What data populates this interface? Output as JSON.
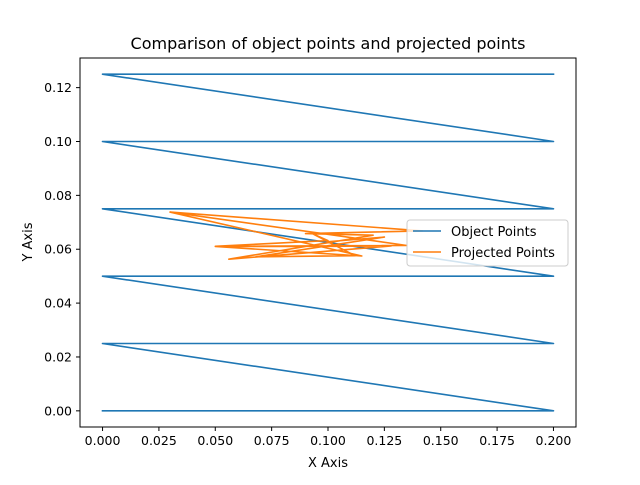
{
  "chart_data": {
    "type": "line",
    "title": "Comparison of object points and projected points",
    "xlabel": "X Axis",
    "ylabel": "Y Axis",
    "xlim": [
      -0.01,
      0.21
    ],
    "ylim": [
      -0.006,
      0.131
    ],
    "xticks": [
      0.0,
      0.025,
      0.05,
      0.075,
      0.1,
      0.125,
      0.15,
      0.175,
      0.2
    ],
    "xtick_labels": [
      "0.000",
      "0.025",
      "0.050",
      "0.075",
      "0.100",
      "0.125",
      "0.150",
      "0.175",
      "0.200"
    ],
    "yticks": [
      0.0,
      0.02,
      0.04,
      0.06,
      0.08,
      0.1,
      0.12
    ],
    "ytick_labels": [
      "0.00",
      "0.02",
      "0.04",
      "0.06",
      "0.08",
      "0.10",
      "0.12"
    ],
    "grid": false,
    "legend": "center-right",
    "series": [
      {
        "name": "Object Points",
        "color": "#1f77b4",
        "x": [
          0.0,
          0.2,
          0.0,
          0.2,
          0.0,
          0.2,
          0.0,
          0.2,
          0.0,
          0.2,
          0.0,
          0.2
        ],
        "y": [
          0.0,
          0.0,
          0.025,
          0.025,
          0.05,
          0.05,
          0.075,
          0.075,
          0.1,
          0.1,
          0.125,
          0.125
        ]
      },
      {
        "name": "Projected Points",
        "color": "#ff7f0e",
        "x": [
          0.03,
          0.115,
          0.05,
          0.128,
          0.056,
          0.12,
          0.09,
          0.142,
          0.03,
          0.135,
          0.05,
          0.1,
          0.093,
          0.112,
          0.068,
          0.125,
          0.1
        ],
        "y": [
          0.0738,
          0.0575,
          0.061,
          0.0612,
          0.0563,
          0.0652,
          0.0658,
          0.0668,
          0.0738,
          0.0614,
          0.0611,
          0.0632,
          0.0658,
          0.0576,
          0.0572,
          0.0645,
          0.0628
        ]
      }
    ]
  }
}
